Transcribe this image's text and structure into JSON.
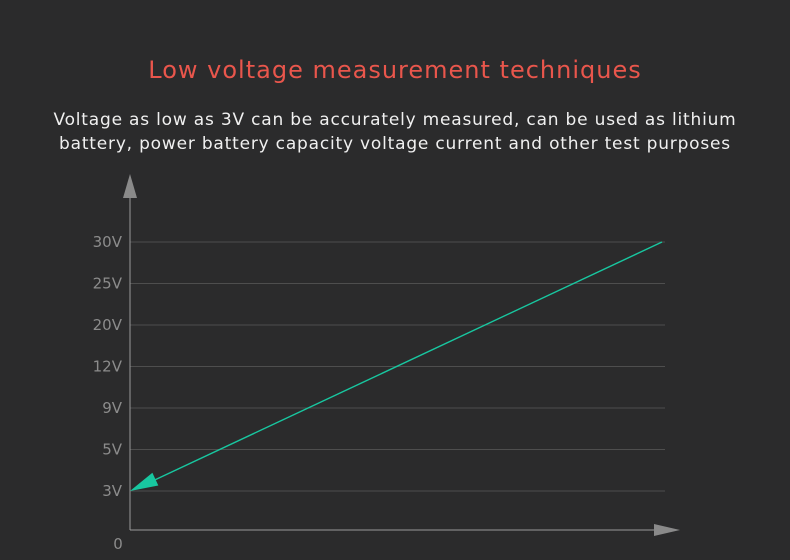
{
  "header": {
    "title": "Low voltage measurement techniques",
    "subtitle_line1": "Voltage as low as 3V can be accurately measured, can be used as lithium",
    "subtitle_line2": "battery, power battery capacity voltage current and other test purposes"
  },
  "colors": {
    "background": "#2b2b2c",
    "title": "#e9564c",
    "text": "#f0f0f0",
    "axis": "#9a9a9a",
    "grid": "#4e4e4e",
    "line": "#18c7a0",
    "tick_label": "#8c8c8c"
  },
  "chart_data": {
    "type": "line",
    "title": "Low voltage measurement techniques",
    "xlabel": "",
    "ylabel": "",
    "origin_label": "0",
    "y_tick_labels": [
      "3V",
      "5V",
      "9V",
      "12V",
      "20V",
      "25V",
      "30V"
    ],
    "grid": true,
    "series": [
      {
        "points": [
          {
            "x": 0,
            "y": "3V"
          },
          {
            "x": 1,
            "y": "30V"
          }
        ]
      }
    ],
    "annotations": [
      "arrow pointing to 3V"
    ]
  }
}
